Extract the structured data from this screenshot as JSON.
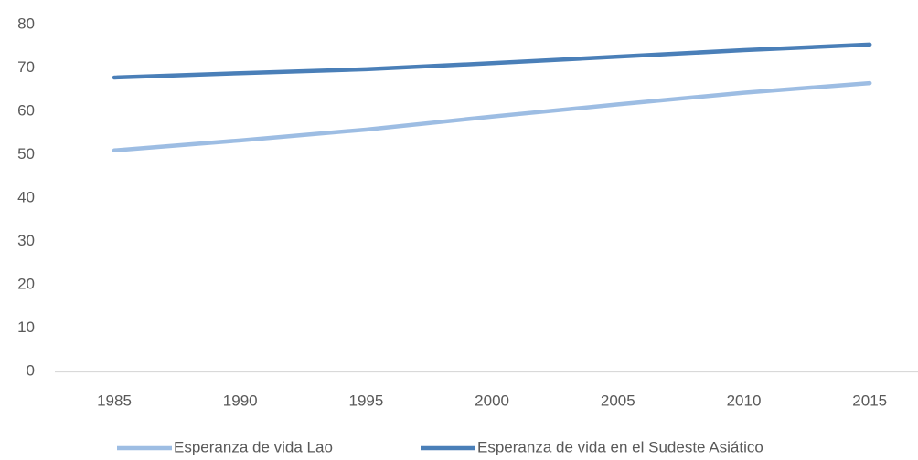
{
  "chart_data": {
    "type": "line",
    "categories": [
      "1985",
      "1990",
      "1995",
      "2000",
      "2005",
      "2010",
      "2015"
    ],
    "series": [
      {
        "name": "Esperanza de vida Lao",
        "color": "#9dbde3",
        "values": [
          51.0,
          53.3,
          55.8,
          58.8,
          61.6,
          64.3,
          66.5
        ]
      },
      {
        "name": "Esperanza de vida en el Sudeste Asiático",
        "color": "#4a7fb8",
        "values": [
          67.8,
          68.8,
          69.7,
          71.1,
          72.6,
          74.1,
          75.4
        ]
      }
    ],
    "ylim": [
      0,
      80
    ],
    "yticks": [
      0,
      10,
      20,
      30,
      40,
      50,
      60,
      70,
      80
    ],
    "grid": false,
    "legend": "bottom"
  }
}
